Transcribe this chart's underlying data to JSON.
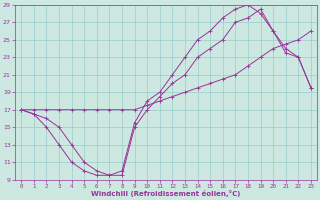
{
  "xlabel": "Windchill (Refroidissement éolien,°C)",
  "bg_color": "#cce8e0",
  "grid_color": "#99cccc",
  "line_color": "#993399",
  "xlim": [
    -0.5,
    23.5
  ],
  "ylim": [
    9,
    29
  ],
  "xticks": [
    0,
    1,
    2,
    3,
    4,
    5,
    6,
    7,
    8,
    9,
    10,
    11,
    12,
    13,
    14,
    15,
    16,
    17,
    18,
    19,
    20,
    21,
    22,
    23
  ],
  "yticks": [
    9,
    11,
    13,
    15,
    17,
    19,
    21,
    23,
    25,
    27,
    29
  ],
  "curve1_x": [
    0,
    1,
    2,
    3,
    4,
    5,
    6,
    7,
    8,
    9,
    10,
    11,
    12,
    13,
    14,
    15,
    16,
    17,
    18,
    19,
    20,
    21,
    22,
    23
  ],
  "curve1_y": [
    17,
    16.5,
    16,
    15,
    13,
    11,
    10,
    9.5,
    9.5,
    15,
    17,
    18.5,
    20,
    21,
    23,
    24,
    25,
    27,
    27.5,
    28.5,
    26,
    23.5,
    23,
    19.5
  ],
  "curve2_x": [
    0,
    1,
    2,
    3,
    4,
    5,
    6,
    7,
    8,
    9,
    10,
    11,
    12,
    13,
    14,
    15,
    16,
    17,
    18,
    19,
    20,
    21,
    22,
    23
  ],
  "curve2_y": [
    17,
    17,
    17,
    17,
    17,
    17,
    17,
    17,
    17,
    17,
    17.5,
    18,
    18.5,
    19,
    19.5,
    20,
    20.5,
    21,
    22,
    23,
    24,
    24.5,
    25,
    26
  ],
  "curve3_x": [
    0,
    1,
    2,
    3,
    4,
    5,
    6,
    7,
    8,
    9,
    10,
    11,
    12,
    13,
    14,
    15,
    16,
    17,
    18,
    19,
    20,
    21,
    22,
    23
  ],
  "curve3_y": [
    17,
    16.5,
    15,
    13,
    11,
    10,
    9.5,
    9.5,
    10,
    15.5,
    18,
    19,
    21,
    23,
    25,
    26,
    27.5,
    28.5,
    29,
    28,
    26,
    24,
    23,
    19.5
  ]
}
